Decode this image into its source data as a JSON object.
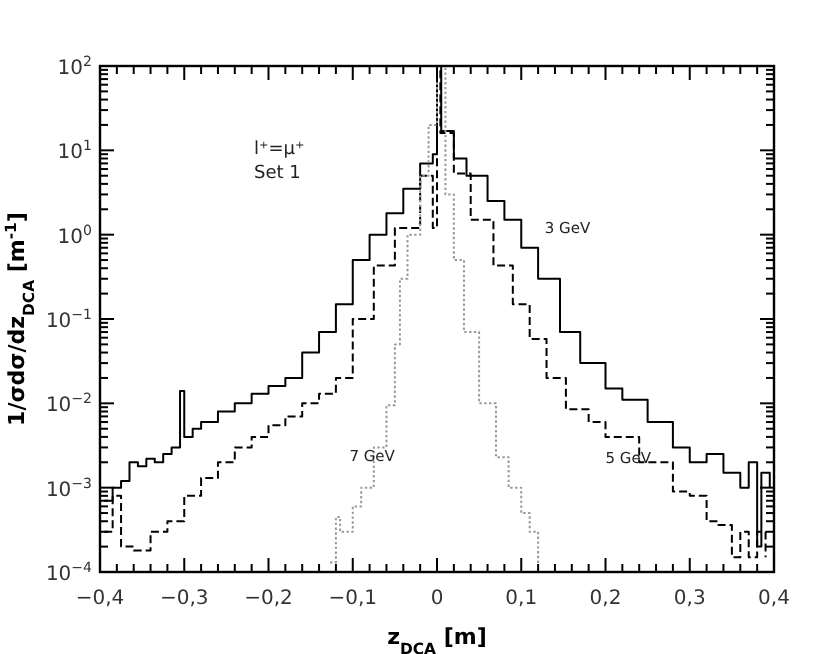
{
  "chart_data": {
    "type": "step",
    "xlabel": "z$_{DCA}$ [m]",
    "ylabel": "1/σdσ/dz$_{DCA}$ [m$^{-1}$]",
    "log": "y",
    "grid": false,
    "xlim": [
      -0.4,
      0.4
    ],
    "xticks": [
      {
        "value": -0.4,
        "label": "−0,4"
      },
      {
        "value": -0.3,
        "label": "−0,3"
      },
      {
        "value": -0.2,
        "label": "−0,2"
      },
      {
        "value": -0.1,
        "label": "−0,1"
      },
      0,
      {
        "value": 0.1,
        "label": "0,1"
      },
      {
        "value": 0.2,
        "label": "0,2"
      },
      {
        "value": 0.3,
        "label": "0,3"
      },
      {
        "value": 0.4,
        "label": "0,4"
      }
    ],
    "ylim": [
      0.0001,
      100
    ],
    "yticks": [
      {
        "value": 0.0001,
        "label": "10$^{−4}$"
      },
      {
        "value": 0.001,
        "label": "10$^{−3}$"
      },
      {
        "value": 0.01,
        "label": "10$^{−2}$"
      },
      {
        "value": 0.1,
        "label": "10$^{−1}$"
      },
      {
        "value": 1,
        "label": "10$^{0}$"
      },
      {
        "value": 10,
        "label": "10$^{1}$"
      },
      {
        "value": 100,
        "label": "10$^{2}$"
      }
    ],
    "annotations": [
      "l⁺=μ⁺",
      "Set 1"
    ],
    "series": [
      {
        "name": "3 GeV",
        "color": "#000000",
        "line_style": "solid",
        "x": [
          -0.395,
          -0.385,
          -0.375,
          -0.365,
          -0.355,
          -0.345,
          -0.335,
          -0.325,
          -0.315,
          -0.305,
          -0.3,
          -0.29,
          -0.28,
          -0.26,
          -0.24,
          -0.22,
          -0.2,
          -0.18,
          -0.16,
          -0.14,
          -0.12,
          -0.1,
          -0.08,
          -0.06,
          -0.04,
          -0.02,
          -0.005,
          0,
          0.005,
          0.02,
          0.035,
          0.06,
          0.08,
          0.1,
          0.12,
          0.146,
          0.17,
          0.2,
          0.22,
          0.25,
          0.28,
          0.3,
          0.32,
          0.34,
          0.36,
          0.37,
          0.38,
          0.385,
          0.395
        ],
        "values": [
          0.0007,
          0.001,
          0.0012,
          0.002,
          0.0018,
          0.0022,
          0.002,
          0.0025,
          0.003,
          0.014,
          0.004,
          0.005,
          0.006,
          0.008,
          0.01,
          0.013,
          0.016,
          0.02,
          0.04,
          0.07,
          0.15,
          0.5,
          1,
          1.8,
          3.5,
          7,
          9,
          100,
          17,
          8,
          5,
          2.5,
          1.5,
          0.7,
          0.3,
          0.07,
          0.03,
          0.015,
          0.011,
          0.006,
          0.003,
          0.002,
          0.0025,
          0.0015,
          0.001,
          0.002,
          0.0002,
          0.0015,
          0.001
        ]
      },
      {
        "name": "5 GeV",
        "color": "#000000",
        "line_style": "dashed",
        "x": [
          -0.395,
          -0.385,
          -0.375,
          -0.36,
          -0.34,
          -0.32,
          -0.3,
          -0.28,
          -0.26,
          -0.24,
          -0.22,
          -0.2,
          -0.18,
          -0.16,
          -0.14,
          -0.12,
          -0.1,
          -0.075,
          -0.05,
          -0.02,
          -0.005,
          0,
          0.004,
          0.02,
          0.04,
          0.067,
          0.09,
          0.11,
          0.13,
          0.153,
          0.18,
          0.2,
          0.24,
          0.28,
          0.3,
          0.32,
          0.334,
          0.35,
          0.36,
          0.37,
          0.38,
          0.39
        ],
        "values": [
          0.0003,
          0.0008,
          0.0002,
          0.00018,
          0.0003,
          0.0004,
          0.0008,
          0.0013,
          0.002,
          0.003,
          0.004,
          0.0055,
          0.007,
          0.01,
          0.013,
          0.02,
          0.1,
          0.43,
          1.2,
          5,
          1.2,
          100,
          16,
          5.3,
          1.5,
          0.43,
          0.15,
          0.058,
          0.02,
          0.0085,
          0.006,
          0.004,
          0.002,
          0.0009,
          0.0008,
          0.0004,
          0.00036,
          0.00015,
          0.0003,
          0.00015,
          0.0003,
          0.00015
        ]
      },
      {
        "name": "7 GeV",
        "color": "#999999",
        "line_style": "dotted",
        "x": [
          -0.127,
          -0.12,
          -0.115,
          -0.1,
          -0.09,
          -0.075,
          -0.06,
          -0.05,
          -0.044,
          -0.035,
          -0.02,
          -0.01,
          0,
          0.01,
          0.02,
          0.032,
          0.05,
          0.07,
          0.085,
          0.1,
          0.11,
          0.12
        ],
        "values": [
          0.00013,
          0.00045,
          0.0003,
          0.0006,
          0.001,
          0.003,
          0.0095,
          0.05,
          0.3,
          1,
          5,
          20,
          100,
          3,
          0.5,
          0.07,
          0.01,
          0.0023,
          0.001,
          0.0005,
          0.0003,
          0.00012
        ]
      }
    ]
  }
}
